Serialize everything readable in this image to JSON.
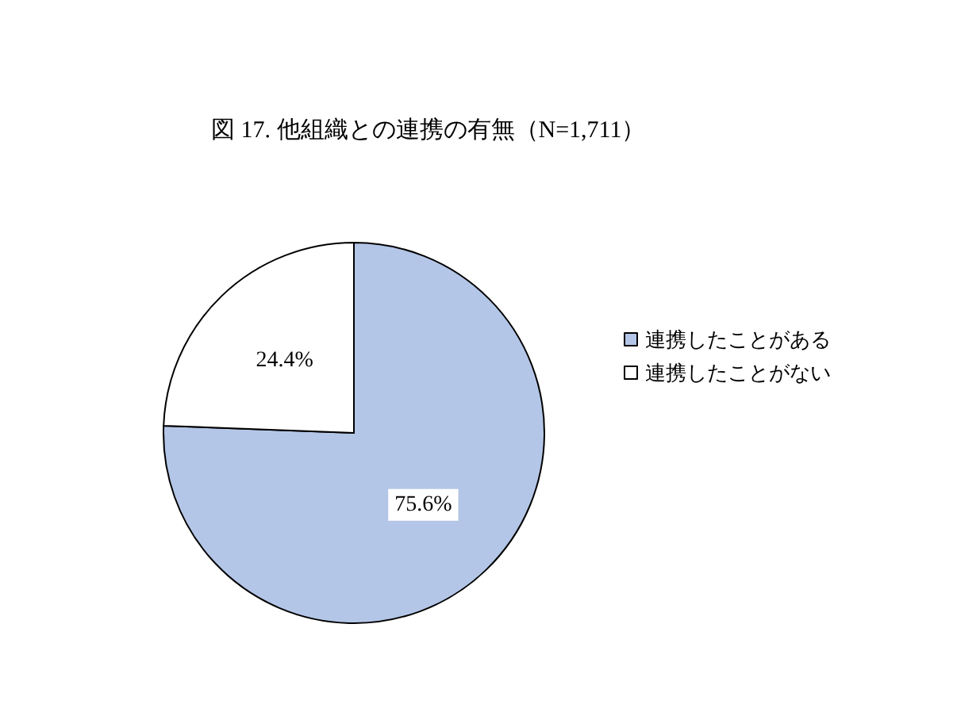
{
  "chart_data": {
    "type": "pie",
    "title": "図 17. 他組織との連携の有無（N=1,711）",
    "categories": [
      "連携したことがある",
      "連携したことがない"
    ],
    "values": [
      75.6,
      24.4
    ],
    "colors": [
      "#b4c6e7",
      "#ffffff"
    ],
    "value_labels": [
      "75.6%",
      "24.4%"
    ],
    "legend": "right"
  }
}
